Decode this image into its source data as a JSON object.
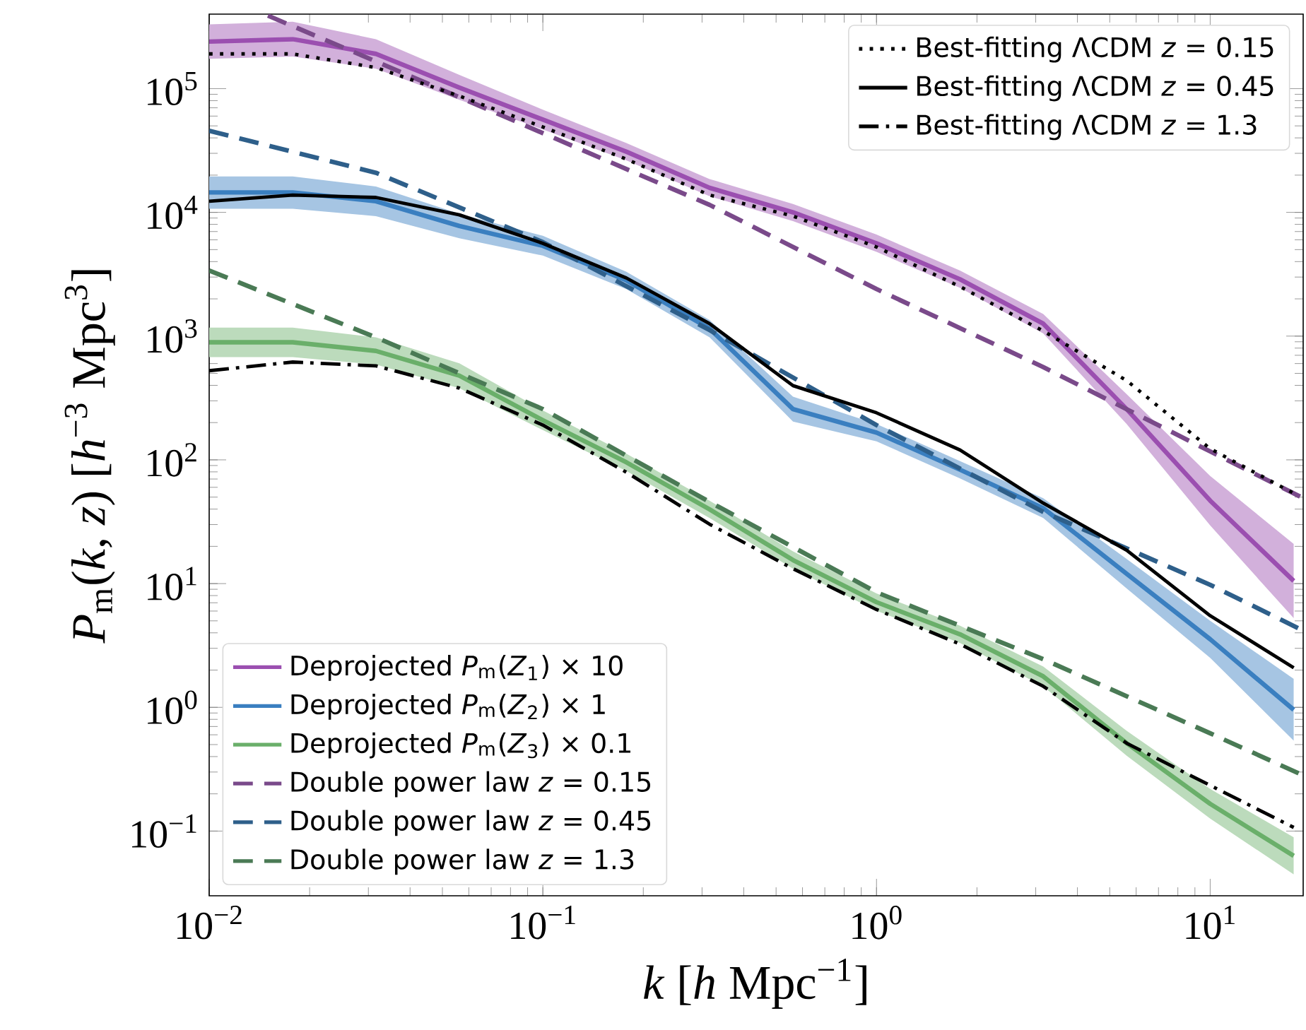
{
  "chart_data": {
    "type": "line",
    "log": "xy",
    "marker": "none",
    "legend": "bottom left",
    "xlabel": "*k* [*h* Mpc$^{−1}$]",
    "ylabel": "*P*$_{m}$(*k*, *z*) [*h*$^{−3}$ Mpc$^{3}$]",
    "xlim": [
      0.01,
      19
    ],
    "ylim": [
      0.03,
      400000
    ],
    "xticks": [
      {
        "value": 0.01,
        "label": "10$^{−2}$"
      },
      {
        "value": 0.1,
        "label": "10$^{−1}$"
      },
      {
        "value": 1,
        "label": "10$^{0}$"
      },
      {
        "value": 10,
        "label": "10$^{1}$"
      }
    ],
    "yticks": [
      {
        "value": 0.1,
        "label": "10$^{−1}$"
      },
      {
        "value": 1,
        "label": "10$^{0}$"
      },
      {
        "value": 10,
        "label": "10$^{1}$"
      },
      {
        "value": 100,
        "label": "10$^{2}$"
      },
      {
        "value": 1000,
        "label": "10$^{3}$"
      },
      {
        "value": 10000,
        "label": "10$^{4}$"
      },
      {
        "value": 100000,
        "label": "10$^{5}$"
      }
    ],
    "x": [
      0.01,
      0.0178,
      0.0316,
      0.0562,
      0.1,
      0.178,
      0.316,
      0.562,
      1,
      1.78,
      3.16,
      5.62,
      10,
      17.8
    ],
    "series": [
      {
        "name": "Deprojected *P*$_{m}$(*Z*$_{1}$) × 10",
        "color": "#9b4fb0",
        "line_style": "solid",
        "values": [
          240000,
          251000,
          191000,
          102000,
          56200,
          30900,
          15800,
          10000,
          5620,
          2880,
          1260,
          257,
          46.8,
          10.5
        ],
        "lower": [
          174000,
          182000,
          145000,
          81300,
          46800,
          26300,
          13500,
          8510,
          4790,
          2450,
          1050,
          195,
          29.5,
          5.25
        ],
        "upper": [
          331000,
          347000,
          251000,
          129000,
          67600,
          36300,
          18600,
          11700,
          6610,
          3390,
          1510,
          339,
          74.1,
          20.9
        ]
      },
      {
        "name": "Deprojected *P*$_{m}$(*Z*$_{2}$) × 1",
        "color": "#3a7fc0",
        "line_style": "solid",
        "values": [
          14500,
          14500,
          12300,
          7760,
          5370,
          2820,
          1150,
          257,
          166,
          83.2,
          40.7,
          12.0,
          3.55,
          0.955
        ],
        "lower": [
          10700,
          10700,
          9330,
          6170,
          4470,
          2400,
          977,
          204,
          141,
          70.8,
          33.9,
          9.12,
          2.51,
          0.537
        ],
        "upper": [
          19500,
          19500,
          16200,
          9770,
          6460,
          3310,
          1350,
          324,
          195,
          97.7,
          49.0,
          15.8,
          5.01,
          1.7
        ]
      },
      {
        "name": "Deprojected *P*$_{m}$(*Z*$_{3}$) × 0.1",
        "color": "#6aaf6a",
        "line_style": "solid",
        "values": [
          891,
          891,
          759,
          479,
          209,
          95.5,
          39.8,
          15.5,
          7.08,
          3.89,
          1.78,
          0.513,
          0.166,
          0.0631
        ],
        "lower": [
          676,
          676,
          589,
          380,
          174,
          81.3,
          33.9,
          13.2,
          6.03,
          3.31,
          1.48,
          0.407,
          0.126,
          0.0447
        ],
        "upper": [
          1170,
          1170,
          977,
          603,
          251,
          112,
          46.8,
          18.2,
          8.32,
          4.57,
          2.14,
          0.646,
          0.219,
          0.0891
        ]
      },
      {
        "name": "Double power law *z* = 0.15",
        "color": "#7a4a8a",
        "line_style": "dashed",
        "x": [
          0.015,
          0.0316,
          0.1,
          0.316,
          1,
          3.16,
          10,
          19
        ],
        "values": [
          389000,
          166000,
          43700,
          11500,
          2400,
          562,
          117,
          49.0
        ]
      },
      {
        "name": "Double power law *z* = 0.45",
        "color": "#2e5f8a",
        "line_style": "dashed",
        "x": [
          0.01,
          0.0316,
          0.1,
          0.316,
          1,
          3.16,
          10,
          19
        ],
        "values": [
          45700,
          20900,
          5750,
          1120,
          191,
          38.0,
          9.77,
          4.17
        ]
      },
      {
        "name": "Double power law *z* = 1.3",
        "color": "#4a7a55",
        "line_style": "dashed",
        "x": [
          0.01,
          0.0316,
          0.1,
          0.316,
          1,
          3.16,
          10,
          19
        ],
        "values": [
          3390,
          977,
          257,
          45.7,
          8.51,
          2.45,
          0.617,
          0.282
        ]
      },
      {
        "name": "Best-fitting ΛCDM *z* = 0.15",
        "color": "#000000",
        "line_style": "dotted",
        "values": [
          191000,
          191000,
          148000,
          87100,
          49000,
          26900,
          13800,
          9330,
          5250,
          2510,
          1100,
          437,
          123,
          53.7
        ]
      },
      {
        "name": "Best-fitting ΛCDM *z* = 0.45",
        "color": "#000000",
        "line_style": "solid",
        "values": [
          12300,
          13800,
          13200,
          9550,
          5620,
          2950,
          1260,
          398,
          240,
          120,
          44.7,
          18.6,
          5.5,
          2.09
        ]
      },
      {
        "name": "Best-fitting ΛCDM *z* = 1.3",
        "color": "#000000",
        "line_style": "dashdot",
        "values": [
          525,
          617,
          575,
          380,
          191,
          79.4,
          30.2,
          13.2,
          6.17,
          3.24,
          1.48,
          0.513,
          0.234,
          0.107
        ]
      }
    ]
  }
}
